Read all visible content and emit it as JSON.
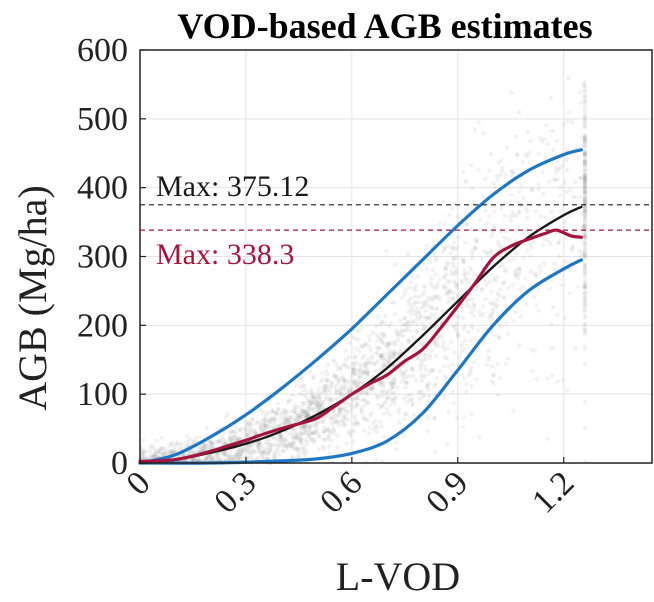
{
  "chart_data": {
    "type": "scatter",
    "title": "VOD-based AGB estimates",
    "xlabel": "L-VOD",
    "ylabel": "AGB (Mg/ha)",
    "xlim": [
      0,
      1.45
    ],
    "ylim": [
      0,
      600
    ],
    "xticks": [
      "0",
      "0.3",
      "0.6",
      "0.9",
      "1.2"
    ],
    "yticks": [
      "0",
      "100",
      "200",
      "300",
      "400",
      "500",
      "600"
    ],
    "grid": true,
    "colors": {
      "scatter": "#9a9a9a",
      "fit": "#1a1a1a",
      "bounds": "#1f77c4",
      "binned": "#a3153f",
      "max_fit": "#222222",
      "max_binned": "#a3153f"
    },
    "annotations": [
      {
        "text": "Max: 375.12",
        "value": 375.12,
        "color": "#1a1a1a"
      },
      {
        "text": "Max: 338.3",
        "value": 338.3,
        "color": "#a3153f"
      }
    ],
    "series": [
      {
        "kind": "fit",
        "x": [
          0,
          0.1,
          0.2,
          0.3,
          0.4,
          0.5,
          0.6,
          0.7,
          0.8,
          0.9,
          1.0,
          1.1,
          1.2,
          1.25
        ],
        "y": [
          0,
          5,
          15,
          28,
          46,
          70,
          100,
          138,
          185,
          235,
          285,
          328,
          360,
          372
        ]
      },
      {
        "kind": "upper",
        "x": [
          0,
          0.1,
          0.2,
          0.3,
          0.4,
          0.5,
          0.6,
          0.7,
          0.8,
          0.9,
          1.0,
          1.1,
          1.2,
          1.25
        ],
        "y": [
          0,
          12,
          38,
          70,
          108,
          150,
          195,
          245,
          295,
          345,
          390,
          425,
          448,
          455
        ]
      },
      {
        "kind": "lower",
        "x": [
          0,
          0.2,
          0.4,
          0.5,
          0.6,
          0.7,
          0.8,
          0.9,
          1.0,
          1.1,
          1.2,
          1.25
        ],
        "y": [
          0,
          0,
          3,
          6,
          14,
          32,
          72,
          135,
          200,
          250,
          282,
          295
        ]
      },
      {
        "kind": "binned",
        "x": [
          0,
          0.05,
          0.1,
          0.15,
          0.2,
          0.25,
          0.3,
          0.35,
          0.4,
          0.45,
          0.5,
          0.55,
          0.6,
          0.65,
          0.7,
          0.75,
          0.8,
          0.85,
          0.9,
          0.95,
          1.0,
          1.05,
          1.1,
          1.15,
          1.18,
          1.22,
          1.25
        ],
        "y": [
          2,
          3,
          5,
          10,
          17,
          25,
          33,
          42,
          50,
          57,
          65,
          82,
          100,
          115,
          128,
          148,
          165,
          195,
          228,
          262,
          298,
          315,
          325,
          334,
          338.3,
          330,
          328
        ]
      }
    ]
  }
}
